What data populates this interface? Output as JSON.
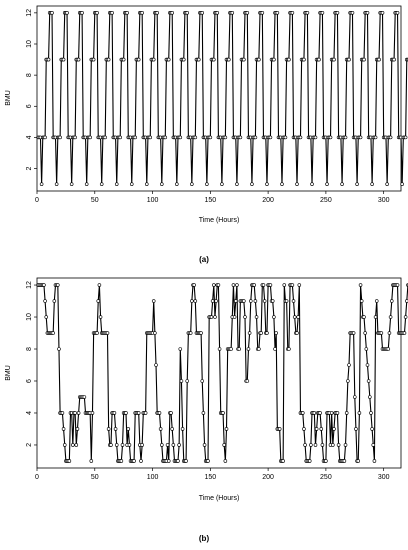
{
  "chart_data": [
    {
      "type": "line",
      "panel_label": "(a)",
      "xlabel": "Time (Hours)",
      "ylabel": "BMU",
      "xlim": [
        0,
        315
      ],
      "ylim": [
        1,
        12
      ],
      "x_ticks": [
        0,
        50,
        100,
        150,
        200,
        250,
        300
      ],
      "y_ticks": [
        2,
        4,
        6,
        8,
        10,
        12
      ],
      "grid": false,
      "legend": "none",
      "line_color": "#000000",
      "marker": "open-circle",
      "series": [
        {
          "x_start": 1,
          "x_step": 1,
          "values": [
            4,
            4,
            4,
            1,
            4,
            4,
            4,
            9,
            9,
            9,
            12,
            12,
            12,
            4,
            4,
            4,
            1,
            4,
            4,
            4,
            9,
            9,
            9,
            12,
            12,
            12,
            4,
            4,
            4,
            1,
            4,
            4,
            4,
            9,
            9,
            9,
            12,
            12,
            12,
            4,
            4,
            4,
            1,
            4,
            4,
            4,
            9,
            9,
            9,
            12,
            12,
            12,
            4,
            4,
            4,
            1,
            4,
            4,
            4,
            9,
            9,
            9,
            12,
            12,
            12,
            4,
            4,
            4,
            1,
            4,
            4,
            4,
            9,
            9,
            9,
            12,
            12,
            12,
            4,
            4,
            4,
            1,
            4,
            4,
            4,
            9,
            9,
            9,
            12,
            12,
            12,
            4,
            4,
            4,
            1,
            4,
            4,
            4,
            9,
            9,
            9,
            12,
            12,
            12,
            4,
            4,
            4,
            1,
            4,
            4,
            4,
            9,
            9,
            9,
            12,
            12,
            12,
            4,
            4,
            4,
            1,
            4,
            4,
            4,
            9,
            9,
            9,
            12,
            12,
            12,
            4,
            4,
            4,
            1,
            4,
            4,
            4,
            9,
            9,
            9,
            12,
            12,
            12,
            4,
            4,
            4,
            1,
            4,
            4,
            4,
            9,
            9,
            9,
            12,
            12,
            12,
            4,
            4,
            4,
            1,
            4,
            4,
            4,
            9,
            9,
            9,
            12,
            12,
            12,
            4,
            4,
            4,
            1,
            4,
            4,
            4,
            9,
            9,
            9,
            12,
            12,
            12,
            4,
            4,
            4,
            1,
            4,
            4,
            4,
            9,
            9,
            9,
            12,
            12,
            12,
            4,
            4,
            4,
            1,
            4,
            4,
            4,
            9,
            9,
            9,
            12,
            12,
            12,
            4,
            4,
            4,
            1,
            4,
            4,
            4,
            9,
            9,
            9,
            12,
            12,
            12,
            4,
            4,
            4,
            1,
            4,
            4,
            4,
            9,
            9,
            9,
            12,
            12,
            12,
            4,
            4,
            4,
            1,
            4,
            4,
            4,
            9,
            9,
            9,
            12,
            12,
            12,
            4,
            4,
            4,
            1,
            4,
            4,
            4,
            9,
            9,
            9,
            12,
            12,
            12,
            4,
            4,
            4,
            1,
            4,
            4,
            4,
            9,
            9,
            9,
            12,
            12,
            12,
            4,
            4,
            4,
            1,
            4,
            4,
            4,
            9,
            9,
            9,
            12,
            12,
            12,
            4,
            4,
            4,
            1,
            4,
            4,
            4,
            9,
            9,
            9,
            12,
            12,
            12,
            4,
            4,
            4,
            1,
            4,
            4,
            4,
            9,
            9,
            9,
            12,
            12,
            12,
            4,
            4,
            4,
            1,
            4,
            4,
            4,
            9,
            9,
            9,
            12,
            12,
            12,
            4,
            4,
            4,
            1,
            4,
            4,
            4,
            9,
            9,
            9,
            12,
            12,
            12
          ]
        }
      ]
    },
    {
      "type": "line",
      "panel_label": "(b)",
      "xlabel": "Time (Hours)",
      "ylabel": "BMU",
      "xlim": [
        0,
        315
      ],
      "ylim": [
        1,
        12
      ],
      "x_ticks": [
        0,
        50,
        100,
        150,
        200,
        250,
        300
      ],
      "y_ticks": [
        2,
        4,
        6,
        8,
        10,
        12
      ],
      "grid": false,
      "legend": "none",
      "line_color": "#000000",
      "marker": "open-circle",
      "series": [
        {
          "x_start": 1,
          "x_step": 1,
          "values": [
            12,
            12,
            12,
            12,
            12,
            12,
            11,
            10,
            9,
            9,
            9,
            9,
            9,
            9,
            11,
            12,
            12,
            12,
            8,
            4,
            4,
            4,
            3,
            2,
            1,
            1,
            1,
            1,
            4,
            4,
            2,
            4,
            4,
            2,
            3,
            4,
            5,
            5,
            5,
            5,
            5,
            4,
            4,
            4,
            4,
            4,
            1,
            4,
            9,
            9,
            9,
            9,
            11,
            12,
            10,
            9,
            9,
            9,
            9,
            9,
            9,
            3,
            2,
            2,
            4,
            4,
            4,
            3,
            2,
            1,
            1,
            1,
            1,
            2,
            4,
            4,
            4,
            2,
            3,
            2,
            1,
            1,
            1,
            1,
            4,
            4,
            4,
            4,
            2,
            1,
            2,
            4,
            4,
            4,
            9,
            9,
            9,
            9,
            9,
            9,
            11,
            9,
            7,
            4,
            4,
            4,
            3,
            2,
            1,
            1,
            1,
            1,
            2,
            1,
            4,
            4,
            3,
            2,
            1,
            1,
            1,
            1,
            2,
            8,
            6,
            3,
            1,
            1,
            1,
            6,
            9,
            9,
            9,
            11,
            12,
            12,
            11,
            9,
            9,
            9,
            9,
            9,
            6,
            4,
            2,
            1,
            1,
            1,
            10,
            10,
            10,
            11,
            12,
            10,
            11,
            12,
            12,
            8,
            4,
            4,
            4,
            2,
            1,
            3,
            8,
            8,
            8,
            8,
            10,
            12,
            10,
            11,
            12,
            8,
            8,
            11,
            11,
            11,
            11,
            10,
            6,
            6,
            8,
            9,
            11,
            12,
            12,
            12,
            11,
            10,
            8,
            8,
            9,
            9,
            12,
            12,
            11,
            9,
            9,
            12,
            12,
            12,
            11,
            11,
            10,
            8,
            9,
            3,
            3,
            3,
            1,
            1,
            1,
            12,
            11,
            11,
            8,
            8,
            12,
            12,
            12,
            11,
            10,
            9,
            9,
            10,
            12,
            4,
            4,
            4,
            3,
            2,
            1,
            1,
            1,
            1,
            2,
            4,
            4,
            4,
            2,
            3,
            4,
            4,
            4,
            3,
            2,
            1,
            1,
            1,
            4,
            4,
            4,
            2,
            4,
            2,
            3,
            4,
            4,
            4,
            2,
            1,
            1,
            1,
            1,
            1,
            2,
            4,
            6,
            7,
            9,
            9,
            9,
            9,
            5,
            3,
            1,
            1,
            4,
            12,
            11,
            10,
            10,
            9,
            8,
            7,
            6,
            5,
            4,
            3,
            2,
            1,
            10,
            11,
            9,
            9,
            9,
            9,
            8,
            8,
            8,
            8,
            8,
            8,
            9,
            10,
            11,
            12,
            12,
            12,
            12,
            12,
            9,
            9,
            9,
            9,
            9,
            9,
            10,
            11,
            12,
            12,
            11,
            10,
            9
          ]
        }
      ]
    }
  ]
}
